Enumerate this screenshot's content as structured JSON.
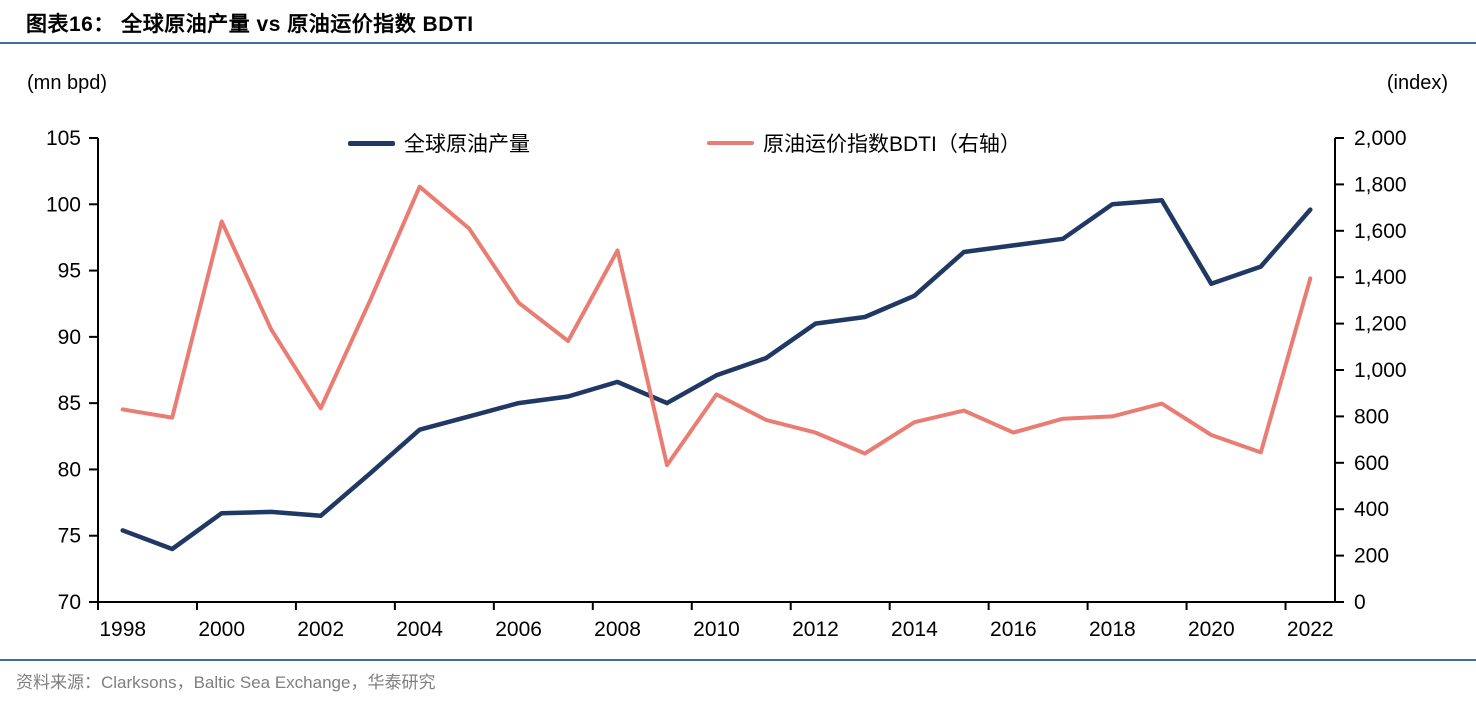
{
  "header": {
    "title": "图表16：  全球原油产量 vs 原油运价指数 BDTI"
  },
  "chart_data": {
    "type": "line",
    "x": [
      1998,
      1999,
      2000,
      2001,
      2002,
      2003,
      2004,
      2005,
      2006,
      2007,
      2008,
      2009,
      2010,
      2011,
      2012,
      2013,
      2014,
      2015,
      2016,
      2017,
      2018,
      2019,
      2020,
      2021,
      2022
    ],
    "x_tick_labels": [
      "1998",
      "2000",
      "2002",
      "2004",
      "2006",
      "2008",
      "2010",
      "2012",
      "2014",
      "2016",
      "2018",
      "2020",
      "2022"
    ],
    "series": [
      {
        "name": "全球原油产量",
        "axis": "left",
        "color": "#1f3864",
        "stroke_width": 4.5,
        "values": [
          75.4,
          74.0,
          76.7,
          76.8,
          76.5,
          79.7,
          83.0,
          84.0,
          85.0,
          85.5,
          86.6,
          85.0,
          87.1,
          88.4,
          91.0,
          91.5,
          93.1,
          96.4,
          96.9,
          97.4,
          100.0,
          100.3,
          94.0,
          95.3,
          99.6
        ]
      },
      {
        "name": "原油运价指数BDTI（右轴）",
        "axis": "right",
        "color": "#e97d73",
        "stroke_width": 4,
        "values": [
          830,
          795,
          1640,
          1175,
          835,
          1300,
          1790,
          1610,
          1290,
          1125,
          1515,
          590,
          895,
          785,
          730,
          640,
          775,
          825,
          730,
          790,
          800,
          855,
          720,
          645,
          1395
        ]
      }
    ],
    "left_axis": {
      "unit_label": "(mn bpd)",
      "min": 70,
      "max": 105,
      "step": 5,
      "tick_labels": [
        "70",
        "75",
        "80",
        "85",
        "90",
        "95",
        "100",
        "105"
      ]
    },
    "right_axis": {
      "unit_label": "(index)",
      "min": 0,
      "max": 2000,
      "step": 200,
      "tick_labels": [
        "0",
        "200",
        "400",
        "600",
        "800",
        "1,000",
        "1,200",
        "1,400",
        "1,600",
        "1,800",
        "2,000"
      ]
    },
    "grid": "off",
    "legend_position": "top-center"
  },
  "footer": {
    "source": "资料来源：Clarksons，Baltic Sea Exchange，华泰研究"
  }
}
